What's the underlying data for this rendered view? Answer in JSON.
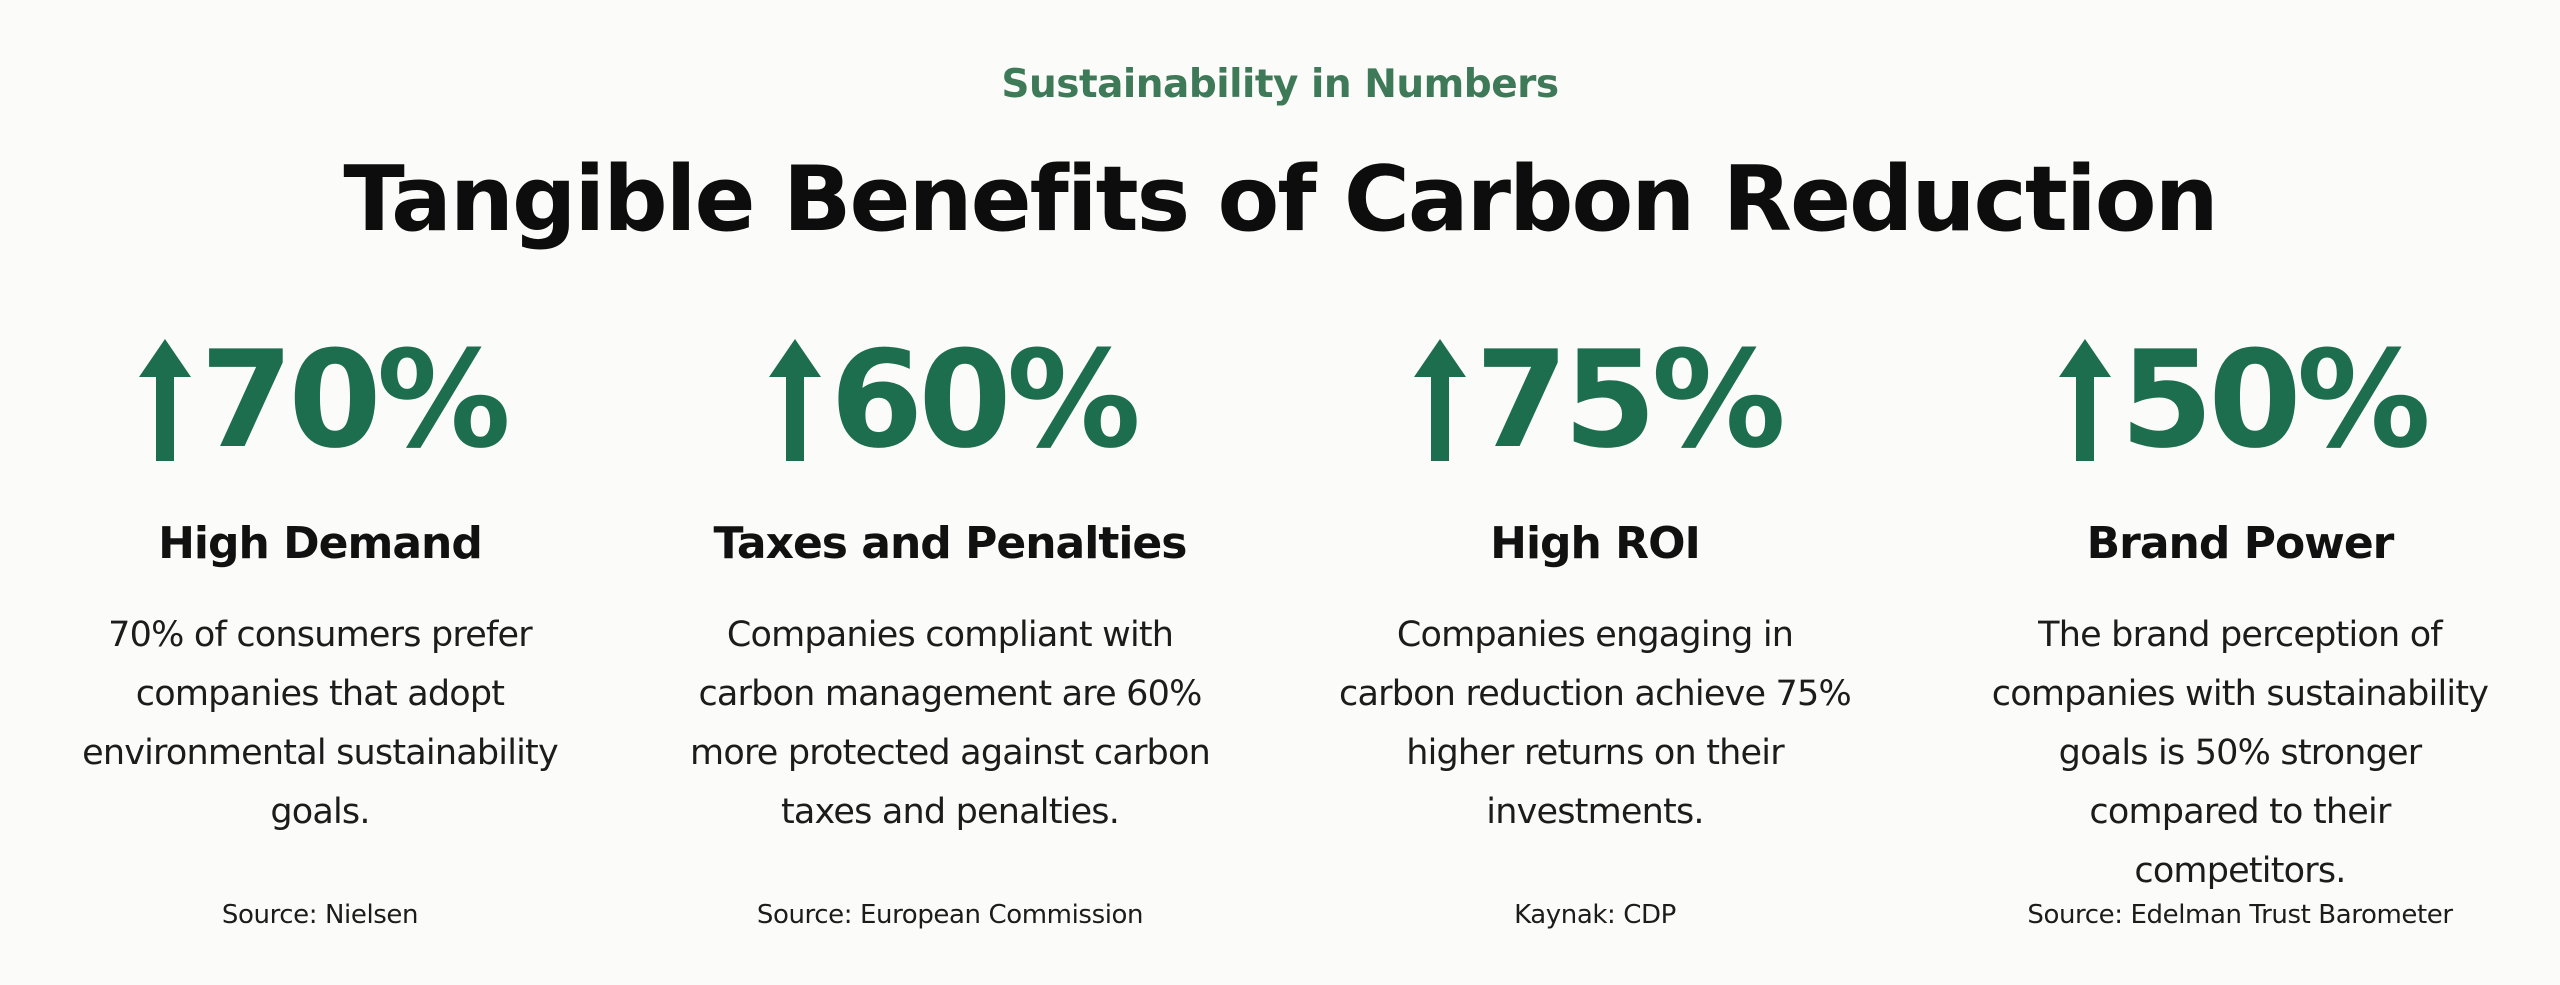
{
  "header": {
    "eyebrow": "Sustainability in Numbers",
    "title": "Tangible Benefits of Carbon Reduction"
  },
  "colors": {
    "accent": "#1c6e4f",
    "eyebrow": "#3f7a58",
    "text": "#111111",
    "background": "#fbfbf9"
  },
  "stats": [
    {
      "icon": "arrow-up-icon",
      "value": "70%",
      "title": "High Demand",
      "description": "70% of consumers prefer companies that adopt environmental sustainability goals.",
      "source": "Source: Nielsen"
    },
    {
      "icon": "arrow-up-icon",
      "value": "60%",
      "title": "Taxes and Penalties",
      "description": "Companies compliant with carbon management are 60% more protected against carbon taxes and penalties.",
      "source": "Source: European Commission"
    },
    {
      "icon": "arrow-up-icon",
      "value": "75%",
      "title": "High ROI",
      "description": "Companies engaging in carbon reduction achieve 75% higher returns on their investments.",
      "source": "Kaynak: CDP"
    },
    {
      "icon": "arrow-up-icon",
      "value": "50%",
      "title": "Brand Power",
      "description": "The brand perception of companies with sustainability goals is 50% stronger compared to their competitors.",
      "source": "Source: Edelman Trust Barometer"
    }
  ]
}
